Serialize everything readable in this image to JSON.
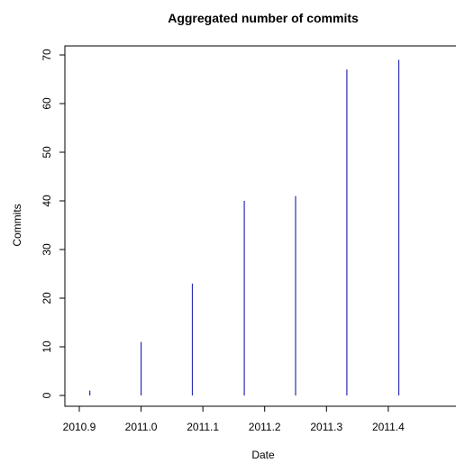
{
  "chart_data": {
    "type": "bar",
    "title": "Aggregated number of commits",
    "xlabel": "Date",
    "ylabel": "Commits",
    "x": [
      2010.917,
      2011.0,
      2011.083,
      2011.167,
      2011.25,
      2011.333,
      2011.417
    ],
    "values": [
      1,
      11,
      23,
      40,
      41,
      67,
      69
    ],
    "xlim": [
      2010.9,
      2011.42
    ],
    "ylim": [
      0,
      70
    ],
    "x_ticks": [
      "2010.9",
      "2011.0",
      "2011.1",
      "2011.2",
      "2011.3",
      "2011.4"
    ],
    "y_ticks": [
      "0",
      "10",
      "20",
      "30",
      "40",
      "50",
      "60",
      "70"
    ],
    "bar_color": "#2b2bb8",
    "grid": false
  }
}
